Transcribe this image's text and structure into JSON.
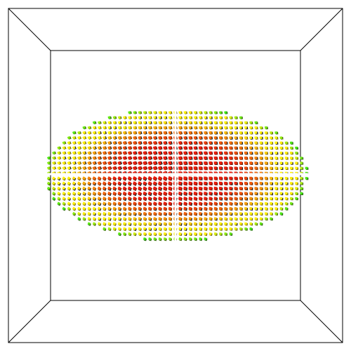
{
  "scene": {
    "background_color": "#ffffff",
    "frame_color": "#000000",
    "subject": "ellipsoid-vector-field",
    "glyph_shape": "small-square-cubes",
    "dark_edge_color": "#1a1a1a",
    "color_scale": {
      "inner": "#e81e0c",
      "mid_inner": "#f26a0a",
      "mid_outer": "#fff00a",
      "outer": "#3ce614"
    },
    "axis_cross_color": "#ffffff"
  }
}
